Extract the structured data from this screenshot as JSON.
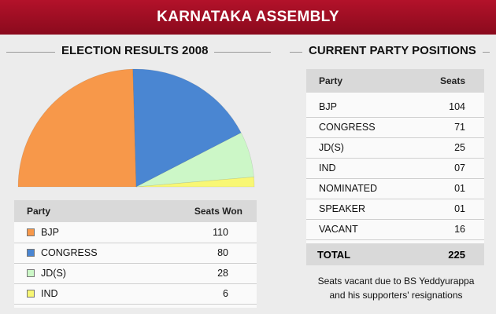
{
  "banner": {
    "title": "KARNATAKA ASSEMBLY"
  },
  "left": {
    "title": "ELECTION RESULTS 2008",
    "headers": {
      "party": "Party",
      "seats": "Seats Won"
    }
  },
  "right": {
    "title": "CURRENT PARTY POSITIONS",
    "headers": {
      "party": "Party",
      "seats": "Seats"
    },
    "rows": [
      {
        "party": "BJP",
        "seats": "104"
      },
      {
        "party": "CONGRESS",
        "seats": "71"
      },
      {
        "party": "JD(S)",
        "seats": "25"
      },
      {
        "party": "IND",
        "seats": "07"
      },
      {
        "party": "NOMINATED",
        "seats": "01"
      },
      {
        "party": "SPEAKER",
        "seats": "01"
      },
      {
        "party": "VACANT",
        "seats": "16"
      }
    ],
    "total": {
      "label": "TOTAL",
      "value": "225"
    },
    "note": [
      "Seats vacant due to BS Yeddyurappa",
      "and his supporters' resignations"
    ]
  },
  "chart_data": {
    "type": "pie",
    "shape": "semicircle",
    "categories": [
      "BJP",
      "CONGRESS",
      "JD(S)",
      "IND"
    ],
    "values": [
      110,
      80,
      28,
      6
    ],
    "colors": [
      "#f7984a",
      "#4a86d2",
      "#ccf7c7",
      "#f8f774"
    ]
  }
}
